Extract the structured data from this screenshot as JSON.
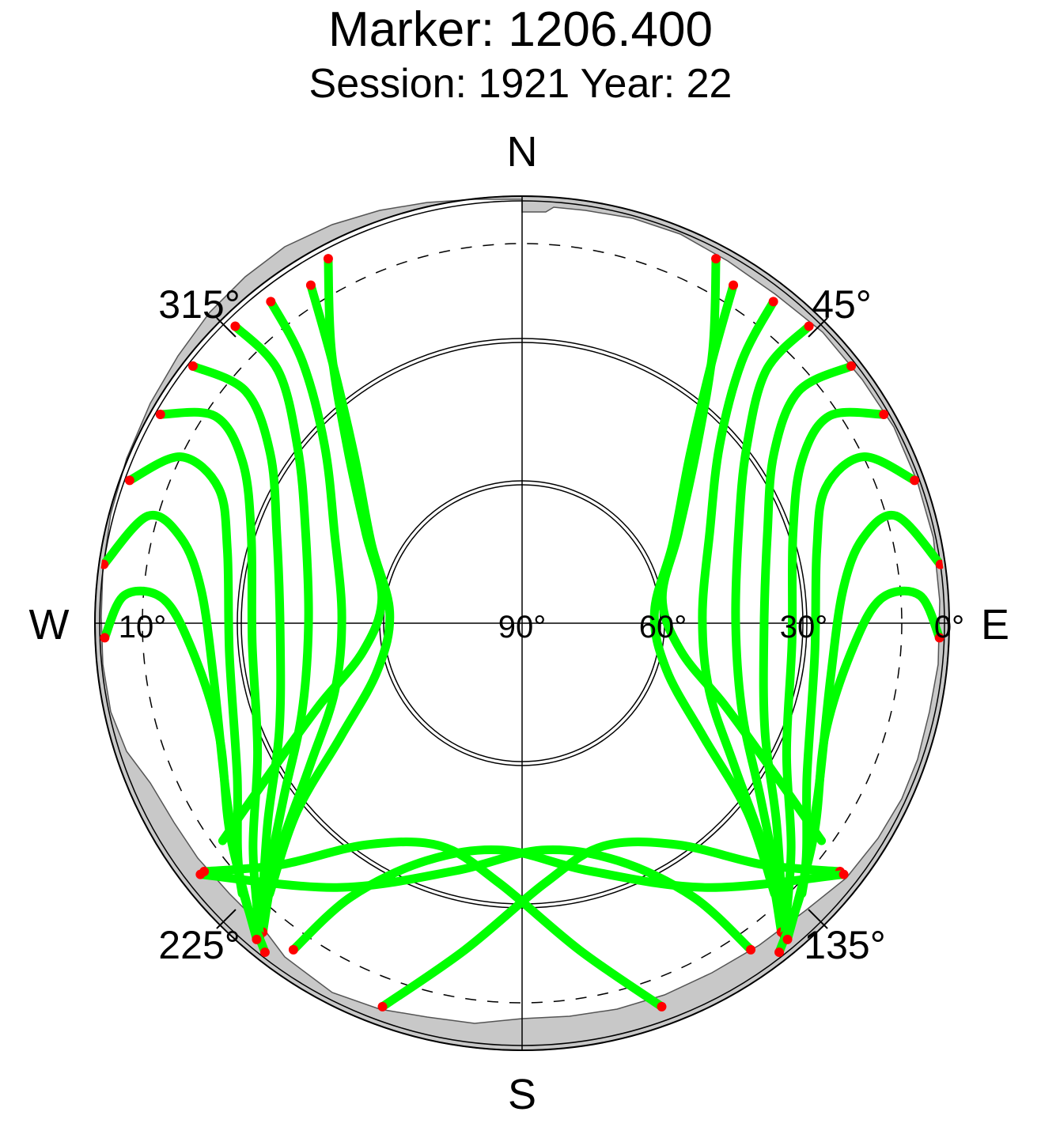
{
  "title": "Marker: 1206.400",
  "subtitle": "Session: 1921 Year: 22",
  "colors": {
    "track": "#00ff00",
    "low_elevation": "#ff0000",
    "mask": "#c8c8c8",
    "grid": "#000000"
  },
  "chart_data": {
    "type": "scatter",
    "projection": "polar-skyplot",
    "title": "Marker: 1206.400",
    "subtitle": "Session: 1921 Year: 22",
    "directions": {
      "north": "N",
      "south": "S",
      "east": "E",
      "west": "W"
    },
    "azimuth_labels": [
      {
        "azimuth": 45,
        "label": "45°"
      },
      {
        "azimuth": 135,
        "label": "135°"
      },
      {
        "azimuth": 225,
        "label": "225°"
      },
      {
        "azimuth": 315,
        "label": "315°"
      }
    ],
    "elevation_labels": [
      {
        "elevation": 0,
        "label": "0°"
      },
      {
        "elevation": 30,
        "label": "30°"
      },
      {
        "elevation": 60,
        "label": "60°"
      },
      {
        "elevation": 90,
        "label": "90°"
      },
      {
        "elevation": 10,
        "label": "10°"
      }
    ],
    "elevation_rings": [
      30,
      60
    ],
    "cutoff_elevation": 10,
    "series": [
      {
        "id": "pass-ne-1",
        "points": [
          [
            28,
            3
          ],
          [
            35,
            20
          ],
          [
            45,
            38
          ],
          [
            60,
            52
          ],
          [
            80,
            60
          ],
          [
            100,
            56
          ],
          [
            112,
            44
          ],
          [
            120,
            30
          ],
          [
            126,
            12
          ]
        ],
        "low_az_end": 126
      },
      {
        "id": "pass-ne-2",
        "points": [
          [
            32,
            6
          ],
          [
            36,
            22
          ],
          [
            45,
            40
          ],
          [
            62,
            54
          ],
          [
            85,
            62
          ],
          [
            108,
            58
          ],
          [
            122,
            45
          ],
          [
            130,
            28
          ],
          [
            137,
            12
          ]
        ]
      },
      {
        "id": "pass-ne-3",
        "points": [
          [
            38,
            4
          ],
          [
            40,
            18
          ],
          [
            48,
            34
          ],
          [
            64,
            46
          ],
          [
            88,
            52
          ],
          [
            110,
            48
          ],
          [
            124,
            36
          ],
          [
            134,
            18
          ],
          [
            140,
            5
          ]
        ]
      },
      {
        "id": "pass-ne-4",
        "points": [
          [
            44,
            3
          ],
          [
            44,
            16
          ],
          [
            52,
            30
          ],
          [
            66,
            40
          ],
          [
            90,
            45
          ],
          [
            112,
            40
          ],
          [
            126,
            28
          ],
          [
            136,
            12
          ]
        ]
      },
      {
        "id": "pass-ne-5",
        "points": [
          [
            52,
            2
          ],
          [
            50,
            14
          ],
          [
            56,
            26
          ],
          [
            70,
            35
          ],
          [
            92,
            39
          ],
          [
            114,
            34
          ],
          [
            128,
            22
          ],
          [
            138,
            8
          ]
        ]
      },
      {
        "id": "pass-ne-6",
        "points": [
          [
            60,
            2
          ],
          [
            56,
            12
          ],
          [
            60,
            22
          ],
          [
            72,
            30
          ],
          [
            94,
            33
          ],
          [
            116,
            28
          ],
          [
            130,
            16
          ],
          [
            140,
            4
          ]
        ]
      },
      {
        "id": "pass-ne-7",
        "points": [
          [
            70,
            2
          ],
          [
            64,
            10
          ],
          [
            66,
            20
          ],
          [
            76,
            26
          ],
          [
            96,
            28
          ],
          [
            118,
            22
          ],
          [
            132,
            10
          ],
          [
            142,
            2
          ]
        ]
      },
      {
        "id": "pass-ne-8",
        "points": [
          [
            82,
            1
          ],
          [
            74,
            8
          ],
          [
            76,
            16
          ],
          [
            84,
            22
          ],
          [
            100,
            24
          ],
          [
            120,
            18
          ],
          [
            134,
            8
          ]
        ]
      },
      {
        "id": "pass-ne-9",
        "points": [
          [
            92,
            2
          ],
          [
            86,
            6
          ],
          [
            86,
            14
          ],
          [
            94,
            20
          ],
          [
            110,
            22
          ],
          [
            126,
            14
          ],
          [
            140,
            3
          ]
        ]
      },
      {
        "id": "pass-nw-1",
        "points": [
          [
            332,
            3
          ],
          [
            325,
            20
          ],
          [
            315,
            38
          ],
          [
            300,
            52
          ],
          [
            280,
            60
          ],
          [
            260,
            56
          ],
          [
            248,
            44
          ],
          [
            240,
            30
          ],
          [
            234,
            12
          ]
        ]
      },
      {
        "id": "pass-nw-2",
        "points": [
          [
            328,
            6
          ],
          [
            324,
            22
          ],
          [
            315,
            40
          ],
          [
            298,
            54
          ],
          [
            275,
            62
          ],
          [
            252,
            58
          ],
          [
            238,
            45
          ],
          [
            230,
            28
          ],
          [
            223,
            12
          ]
        ]
      },
      {
        "id": "pass-nw-3",
        "points": [
          [
            322,
            4
          ],
          [
            320,
            18
          ],
          [
            312,
            34
          ],
          [
            296,
            46
          ],
          [
            272,
            52
          ],
          [
            250,
            48
          ],
          [
            236,
            36
          ],
          [
            226,
            18
          ],
          [
            220,
            5
          ]
        ]
      },
      {
        "id": "pass-nw-4",
        "points": [
          [
            316,
            3
          ],
          [
            316,
            16
          ],
          [
            308,
            30
          ],
          [
            294,
            40
          ],
          [
            270,
            45
          ],
          [
            248,
            40
          ],
          [
            234,
            28
          ],
          [
            224,
            12
          ]
        ]
      },
      {
        "id": "pass-nw-5",
        "points": [
          [
            308,
            2
          ],
          [
            310,
            14
          ],
          [
            304,
            26
          ],
          [
            290,
            35
          ],
          [
            268,
            39
          ],
          [
            246,
            34
          ],
          [
            232,
            22
          ],
          [
            222,
            8
          ]
        ]
      },
      {
        "id": "pass-nw-6",
        "points": [
          [
            300,
            2
          ],
          [
            304,
            12
          ],
          [
            300,
            22
          ],
          [
            288,
            30
          ],
          [
            266,
            33
          ],
          [
            244,
            28
          ],
          [
            230,
            16
          ],
          [
            220,
            4
          ]
        ]
      },
      {
        "id": "pass-nw-7",
        "points": [
          [
            290,
            2
          ],
          [
            296,
            10
          ],
          [
            294,
            20
          ],
          [
            284,
            26
          ],
          [
            264,
            28
          ],
          [
            242,
            22
          ],
          [
            228,
            10
          ],
          [
            218,
            2
          ]
        ]
      },
      {
        "id": "pass-nw-8",
        "points": [
          [
            278,
            1
          ],
          [
            286,
            8
          ],
          [
            284,
            16
          ],
          [
            276,
            22
          ],
          [
            260,
            24
          ],
          [
            240,
            18
          ],
          [
            226,
            8
          ]
        ]
      },
      {
        "id": "pass-nw-9",
        "points": [
          [
            268,
            2
          ],
          [
            274,
            6
          ],
          [
            274,
            14
          ],
          [
            266,
            20
          ],
          [
            250,
            22
          ],
          [
            234,
            14
          ],
          [
            220,
            3
          ]
        ]
      },
      {
        "id": "pass-s-1",
        "points": [
          [
            200,
            4
          ],
          [
            190,
            20
          ],
          [
            175,
            35
          ],
          [
            160,
            40
          ],
          [
            145,
            33
          ],
          [
            135,
            18
          ],
          [
            128,
            5
          ]
        ]
      },
      {
        "id": "pass-s-2",
        "points": [
          [
            232,
            4
          ],
          [
            215,
            22
          ],
          [
            195,
            36
          ],
          [
            175,
            42
          ],
          [
            158,
            36
          ],
          [
            148,
            22
          ],
          [
            145,
            6
          ]
        ]
      },
      {
        "id": "pass-s-3",
        "points": [
          [
            160,
            4
          ],
          [
            170,
            20
          ],
          [
            185,
            35
          ],
          [
            200,
            40
          ],
          [
            215,
            33
          ],
          [
            225,
            18
          ],
          [
            232,
            5
          ]
        ]
      },
      {
        "id": "pass-s-4",
        "points": [
          [
            128,
            4
          ],
          [
            145,
            22
          ],
          [
            165,
            36
          ],
          [
            185,
            42
          ],
          [
            202,
            36
          ],
          [
            212,
            22
          ],
          [
            215,
            6
          ]
        ]
      }
    ]
  }
}
